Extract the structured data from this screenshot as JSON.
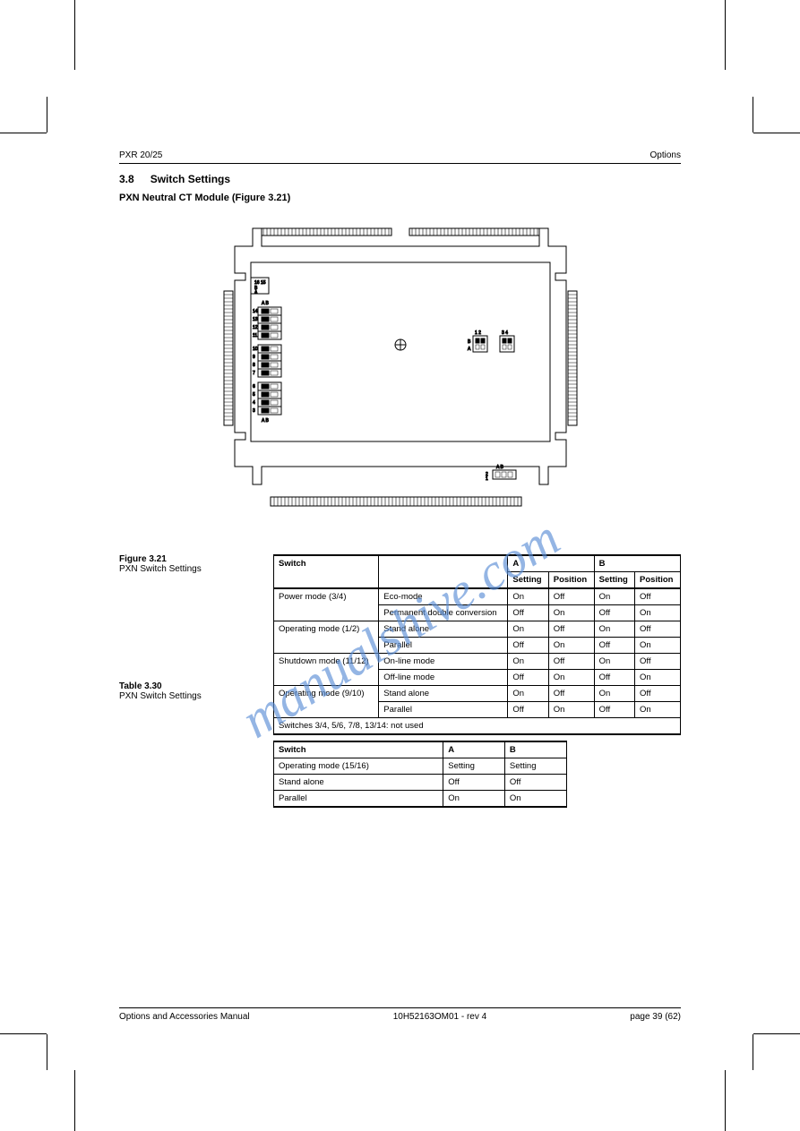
{
  "header": {
    "left": "PXR 20/25",
    "right": "Options"
  },
  "section_number": "3.8",
  "section_title": "Switch Settings",
  "subtitle": "PXN Neutral CT Module (Figure 3.21)",
  "figure": {
    "number": "Figure 3.21",
    "caption": "PXN Switch Settings"
  },
  "table1_caption": {
    "number": "Table 3.30",
    "caption": "PXN Switch Settings"
  },
  "diagram": {
    "labels": {
      "top_left_AB": "A  B",
      "left_connector_AB": "A  B",
      "right_jumpers_12": "1  2",
      "right_jumpers_34": "3  4",
      "bottom_right_AB": "A  B",
      "left_conn_16_15": "16 15"
    },
    "pin_rows_left": [
      "14",
      "13",
      "12",
      "11",
      "10",
      "9",
      "8",
      "7",
      "6",
      "5",
      "4",
      "3"
    ],
    "right_jumper_row_labels": [
      "B",
      "A"
    ]
  },
  "table1": {
    "columns": [
      "Switch",
      "",
      "A",
      "",
      "B",
      ""
    ],
    "subcolumns": [
      "",
      "",
      "Setting",
      "Position",
      "Setting",
      "Position"
    ],
    "groups": [
      {
        "name": "Power mode (3/4)",
        "rows": [
          {
            "c1": "Eco-mode",
            "c2": "On",
            "c3": "Off",
            "c4": "On",
            "c5": "Off"
          },
          {
            "c1": "Permanent double conversion",
            "c2": "Off",
            "c3": "On",
            "c4": "Off",
            "c5": "On"
          }
        ]
      },
      {
        "name": "Operating mode (1/2)",
        "rows": [
          {
            "c1": "Stand alone",
            "c2": "On",
            "c3": "Off",
            "c4": "On",
            "c5": "Off"
          },
          {
            "c1": "Parallel",
            "c2": "Off",
            "c3": "On",
            "c4": "Off",
            "c5": "On"
          }
        ]
      },
      {
        "name": "Shutdown mode (11/12)",
        "rows": [
          {
            "c1": "On-line mode",
            "c2": "On",
            "c3": "Off",
            "c4": "On",
            "c5": "Off"
          },
          {
            "c1": "Off-line mode",
            "c2": "Off",
            "c3": "On",
            "c4": "Off",
            "c5": "On"
          }
        ]
      },
      {
        "name": "Operating mode (9/10)",
        "rows": [
          {
            "c1": "Stand alone",
            "c2": "On",
            "c3": "Off",
            "c4": "On",
            "c5": "Off"
          },
          {
            "c1": "Parallel",
            "c2": "Off",
            "c3": "On",
            "c4": "Off",
            "c5": "On"
          }
        ]
      }
    ],
    "footnote": "Switches 3/4, 5/6, 7/8, 13/14: not used"
  },
  "table2": {
    "columns": [
      "Switch",
      "A",
      "B"
    ],
    "rows": [
      {
        "c0": "Operating mode (15/16)",
        "c1": "Setting",
        "c2": "Setting"
      },
      {
        "c0": "Stand alone",
        "c1": "Off",
        "c2": "Off"
      },
      {
        "c0": "Parallel",
        "c1": "On",
        "c2": "On"
      }
    ]
  },
  "footer": {
    "left": "Options and Accessories Manual",
    "center": "10H52163OM01 - rev 4",
    "right": "page 39 (62)"
  },
  "watermark": "manualshive.com",
  "colors": {
    "watermark": "#5b8fd6",
    "text": "#000000",
    "bg": "#ffffff"
  }
}
